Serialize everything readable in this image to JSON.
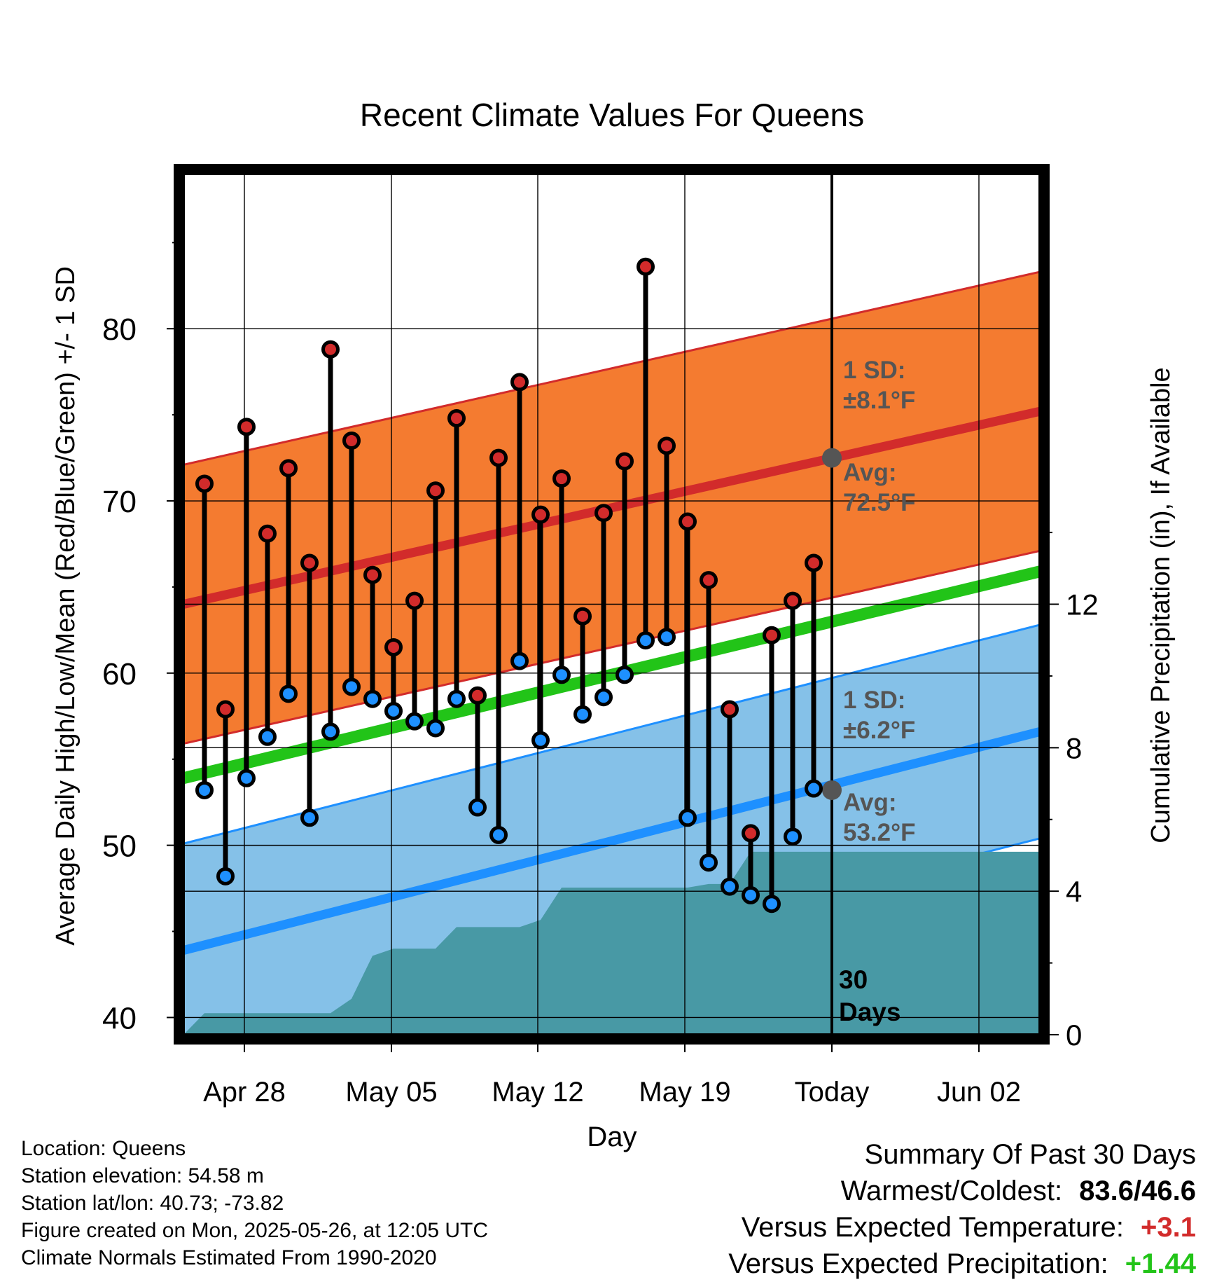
{
  "chart_data": {
    "type": "line",
    "title": "Recent Climate Values For Queens",
    "xlabel": "Day",
    "ylabel": "Average Daily High/Low/Mean (Red/Blue/Green) +/- 1 SD",
    "y2label": "Cumulative Precipitation (in), If Available",
    "x_tick_labels": [
      "Apr 28",
      "May 05",
      "May 12",
      "May 19",
      "Today",
      "Jun 02"
    ],
    "y_ticks": [
      40,
      50,
      60,
      70,
      80
    ],
    "y2_ticks": [
      0,
      4,
      8,
      12
    ],
    "ylim": [
      39,
      89
    ],
    "y2lim": [
      0,
      24
    ],
    "today_label": "30\nDays",
    "highs": [
      71.0,
      57.9,
      74.3,
      68.1,
      71.9,
      66.4,
      78.8,
      73.5,
      65.7,
      61.5,
      64.2,
      70.6,
      74.8,
      58.7,
      72.5,
      76.9,
      69.2,
      71.3,
      63.3,
      69.3,
      72.3,
      83.6,
      73.2,
      68.8,
      65.4,
      57.9,
      50.7,
      62.2,
      64.2,
      66.4
    ],
    "lows": [
      53.2,
      48.2,
      53.9,
      56.3,
      58.8,
      51.6,
      56.6,
      59.2,
      58.5,
      57.8,
      57.2,
      56.8,
      58.5,
      52.2,
      50.6,
      60.7,
      56.1,
      59.9,
      57.6,
      58.6,
      59.9,
      61.9,
      62.1,
      51.6,
      49.0,
      47.6,
      47.1,
      46.6,
      50.5,
      53.3
    ],
    "normal_high": {
      "start": 64.0,
      "end": 75.2,
      "avg_today": 72.5
    },
    "normal_low": {
      "start": 43.9,
      "end": 56.6,
      "avg_today": 53.2
    },
    "normal_mean": {
      "start": 53.9,
      "end": 65.9
    },
    "sd_high": 8.1,
    "sd_low": 6.2,
    "precip_cumulative": [
      0,
      0.6,
      0.6,
      0.6,
      0.6,
      0.6,
      0.6,
      0.6,
      1.0,
      2.2,
      2.4,
      2.4,
      2.4,
      3.0,
      3.0,
      3.0,
      3.0,
      3.2,
      4.1,
      4.1,
      4.1,
      4.1,
      4.1,
      4.1,
      4.1,
      4.2,
      4.2,
      5.1,
      5.1,
      5.1,
      5.1
    ],
    "annotations": {
      "high_sd": "1 SD:\n±8.1°F",
      "high_avg": "Avg:\n72.5°F",
      "low_sd": "1 SD:\n±6.2°F",
      "low_avg": "Avg:\n53.2°F"
    },
    "colors": {
      "high_band": "#f47b30",
      "high_line": "#d22b2b",
      "low_band": "#85c1e8",
      "low_line": "#1e90ff",
      "mean_line": "#22c418",
      "precip": "#4899a5",
      "high_marker": "#d22b2b",
      "low_marker": "#1e90ff",
      "annotation": "#555555"
    },
    "grid": true
  },
  "footer": {
    "location": "Location: Queens",
    "elevation": "Station elevation: 54.58 m",
    "latlon": "Station lat/lon: 40.73; -73.82",
    "created": "Figure created on Mon, 2025-05-26, at 12:05 UTC",
    "normals": "Climate Normals Estimated From 1990-2020"
  },
  "summary": {
    "title": "Summary Of Past 30 Days",
    "warm_cold_label": "Warmest/Coldest:",
    "warmest": "83.6",
    "coldest": "46.6",
    "temp_label": "Versus Expected Temperature:",
    "temp_value": "+3.1",
    "temp_color": "#d22b2b",
    "precip_label": "Versus Expected Precipitation:",
    "precip_value": "+1.44",
    "precip_color": "#22c418"
  }
}
